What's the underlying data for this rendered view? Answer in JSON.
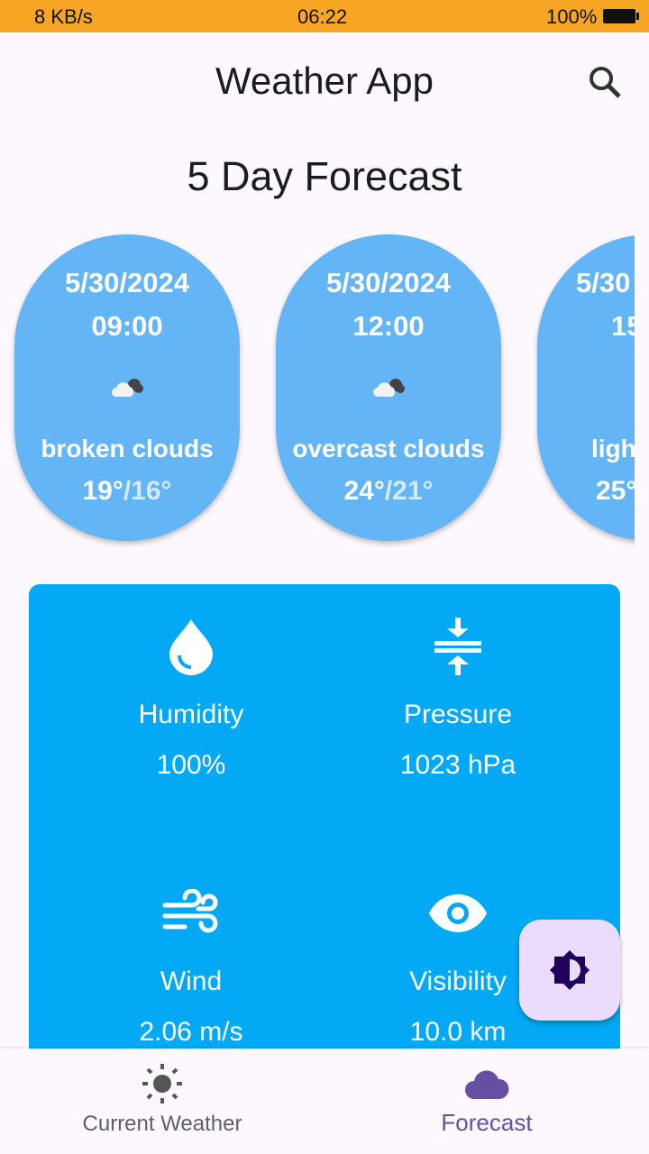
{
  "status_bar": {
    "speed": "8 KB/s",
    "time": "06:22",
    "battery": "100%"
  },
  "app_bar": {
    "title": "Weather App"
  },
  "section_title": "5 Day Forecast",
  "forecast": [
    {
      "date": "5/30/2024",
      "time": "09:00",
      "description": "broken clouds",
      "high": "19°",
      "separator": "/",
      "low": "16°"
    },
    {
      "date": "5/30/2024",
      "time": "12:00",
      "description": "overcast clouds",
      "high": "24°",
      "separator": "/",
      "low": "21°"
    },
    {
      "date": "5/30",
      "time": "15",
      "description": "ligh",
      "high": "25°"
    }
  ],
  "details": [
    {
      "label": "Humidity",
      "value": "100%"
    },
    {
      "label": "Pressure",
      "value": "1023 hPa"
    },
    {
      "label": "Wind",
      "value": "2.06 m/s"
    },
    {
      "label": "Visibility",
      "value": "10.0 km"
    }
  ],
  "bottom_nav": [
    {
      "label": "Current Weather"
    },
    {
      "label": "Forecast"
    }
  ]
}
